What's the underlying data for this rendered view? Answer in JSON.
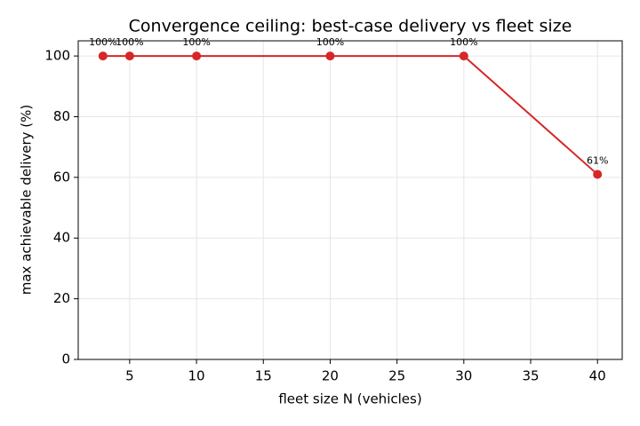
{
  "chart_data": {
    "type": "line",
    "title": "Convergence ceiling: best-case delivery vs fleet size",
    "xlabel": "fleet size N (vehicles)",
    "ylabel": "max achievable delivery (%)",
    "x": [
      3,
      5,
      10,
      20,
      30,
      40
    ],
    "series": [
      {
        "name": "max achievable delivery",
        "color": "#d62728",
        "values": [
          100,
          100,
          100,
          100,
          100,
          61
        ],
        "value_labels": [
          "100%",
          "100%",
          "100%",
          "100%",
          "100%",
          "61%"
        ]
      }
    ],
    "xlim": [
      1.15,
      41.85
    ],
    "xticks": [
      5,
      10,
      15,
      20,
      25,
      30,
      35,
      40
    ],
    "ylim": [
      0,
      105
    ],
    "yticks": [
      0,
      20,
      40,
      60,
      80,
      100
    ],
    "grid": true
  }
}
